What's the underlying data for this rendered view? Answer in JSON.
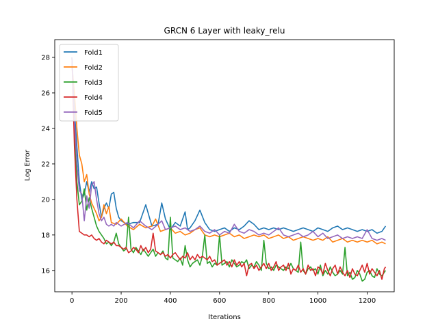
{
  "chart_data": {
    "type": "line",
    "title": "GRCN 6 Layer with leaky_relu",
    "xlabel": "Iterations",
    "ylabel": "Log Error",
    "xlim": [
      -70,
      1310
    ],
    "ylim": [
      14.8,
      29.0
    ],
    "xticks": [
      0,
      200,
      400,
      600,
      800,
      1000,
      1200
    ],
    "yticks": [
      16,
      18,
      20,
      22,
      24,
      26,
      28
    ],
    "grid": false,
    "legend_position": "upper-left",
    "series": [
      {
        "name": "Fold1",
        "color": "#1f77b4",
        "x": [
          0,
          10,
          20,
          30,
          40,
          50,
          60,
          70,
          80,
          90,
          100,
          110,
          120,
          130,
          140,
          150,
          160,
          170,
          180,
          190,
          200,
          225,
          250,
          275,
          300,
          325,
          350,
          365,
          380,
          400,
          420,
          440,
          460,
          470,
          480,
          500,
          520,
          540,
          560,
          580,
          600,
          620,
          640,
          660,
          680,
          700,
          720,
          740,
          760,
          780,
          800,
          820,
          840,
          860,
          880,
          900,
          920,
          940,
          960,
          980,
          1000,
          1020,
          1040,
          1060,
          1080,
          1100,
          1120,
          1140,
          1160,
          1180,
          1200,
          1220,
          1240,
          1260,
          1275
        ],
        "y": [
          28.0,
          25.0,
          23.0,
          21.0,
          20.0,
          20.3,
          21.0,
          20.4,
          21.0,
          20.6,
          20.7,
          19.8,
          19.0,
          19.5,
          19.8,
          19.5,
          20.3,
          20.4,
          19.5,
          19.0,
          18.8,
          18.6,
          18.7,
          18.7,
          19.7,
          18.5,
          18.6,
          19.8,
          18.9,
          18.3,
          18.7,
          18.5,
          19.3,
          18.3,
          18.4,
          18.8,
          19.4,
          18.7,
          18.3,
          18.2,
          18.3,
          18.4,
          18.2,
          18.4,
          18.3,
          18.5,
          18.8,
          18.6,
          18.3,
          18.4,
          18.3,
          18.4,
          18.3,
          18.4,
          18.3,
          18.2,
          18.3,
          18.4,
          18.3,
          18.2,
          18.4,
          18.3,
          18.2,
          18.4,
          18.5,
          18.3,
          18.4,
          18.3,
          18.2,
          18.3,
          18.2,
          18.3,
          18.1,
          18.2,
          18.5
        ]
      },
      {
        "name": "Fold2",
        "color": "#ff7f0e",
        "x": [
          0,
          10,
          20,
          30,
          40,
          50,
          60,
          70,
          80,
          90,
          100,
          110,
          120,
          130,
          140,
          150,
          160,
          180,
          200,
          225,
          250,
          275,
          300,
          325,
          340,
          360,
          380,
          400,
          420,
          440,
          460,
          480,
          500,
          520,
          540,
          560,
          580,
          600,
          620,
          640,
          660,
          680,
          700,
          720,
          740,
          760,
          780,
          800,
          820,
          840,
          860,
          880,
          900,
          920,
          940,
          960,
          980,
          1000,
          1020,
          1040,
          1060,
          1080,
          1100,
          1120,
          1140,
          1160,
          1180,
          1200,
          1220,
          1240,
          1260,
          1275
        ],
        "y": [
          27.5,
          26.0,
          24.0,
          22.5,
          22.0,
          21.0,
          21.4,
          20.3,
          19.8,
          19.5,
          19.2,
          18.8,
          19.0,
          19.7,
          19.2,
          19.6,
          18.7,
          18.6,
          18.9,
          18.5,
          18.3,
          18.6,
          18.4,
          18.5,
          18.9,
          18.2,
          18.3,
          18.4,
          18.1,
          18.2,
          18.0,
          18.1,
          18.3,
          18.4,
          18.0,
          17.9,
          18.0,
          17.9,
          18.0,
          18.1,
          17.9,
          18.0,
          17.8,
          17.9,
          18.0,
          17.9,
          18.0,
          17.8,
          17.9,
          18.0,
          17.8,
          17.9,
          17.7,
          17.8,
          17.9,
          17.8,
          17.7,
          17.8,
          17.7,
          17.9,
          17.6,
          17.7,
          17.8,
          17.6,
          17.7,
          17.6,
          17.7,
          17.6,
          17.7,
          17.5,
          17.6,
          17.5
        ]
      },
      {
        "name": "Fold3",
        "color": "#2ca02c",
        "x": [
          0,
          10,
          20,
          30,
          40,
          50,
          60,
          70,
          80,
          90,
          100,
          110,
          120,
          130,
          140,
          150,
          160,
          170,
          180,
          190,
          200,
          210,
          220,
          230,
          240,
          250,
          260,
          270,
          280,
          290,
          300,
          310,
          320,
          330,
          340,
          350,
          360,
          370,
          380,
          390,
          400,
          410,
          420,
          430,
          440,
          450,
          460,
          470,
          480,
          490,
          500,
          510,
          520,
          530,
          540,
          550,
          560,
          570,
          580,
          590,
          600,
          610,
          620,
          630,
          640,
          650,
          660,
          670,
          680,
          690,
          700,
          710,
          720,
          730,
          740,
          750,
          760,
          770,
          780,
          790,
          800,
          810,
          820,
          830,
          840,
          850,
          860,
          870,
          880,
          890,
          900,
          910,
          920,
          930,
          940,
          950,
          960,
          970,
          980,
          990,
          1000,
          1010,
          1020,
          1030,
          1040,
          1050,
          1060,
          1070,
          1080,
          1090,
          1100,
          1110,
          1120,
          1130,
          1140,
          1150,
          1160,
          1170,
          1180,
          1190,
          1200,
          1210,
          1220,
          1230,
          1240,
          1250,
          1260,
          1270,
          1275
        ],
        "y": [
          28.0,
          24.0,
          21.0,
          19.7,
          19.9,
          20.6,
          19.4,
          20.1,
          19.5,
          19.0,
          18.5,
          18.2,
          18.0,
          17.8,
          17.5,
          17.6,
          17.4,
          17.6,
          18.1,
          17.5,
          17.3,
          17.1,
          17.2,
          19.0,
          17.2,
          17.0,
          17.3,
          17.1,
          16.9,
          17.2,
          17.0,
          16.8,
          17.0,
          17.2,
          16.8,
          17.0,
          16.9,
          17.1,
          16.7,
          16.6,
          19.0,
          16.7,
          16.6,
          16.5,
          16.7,
          16.3,
          17.4,
          16.6,
          16.2,
          16.4,
          16.5,
          16.6,
          16.3,
          16.8,
          18.0,
          16.4,
          16.5,
          16.2,
          16.4,
          16.3,
          18.0,
          16.3,
          16.4,
          16.5,
          16.2,
          16.6,
          16.4,
          16.2,
          16.3,
          16.5,
          16.4,
          16.6,
          16.1,
          16.3,
          16.2,
          16.5,
          16.3,
          16.0,
          17.7,
          16.4,
          16.1,
          16.2,
          16.0,
          16.3,
          16.2,
          16.1,
          16.0,
          16.2,
          16.1,
          16.4,
          16.1,
          16.0,
          15.9,
          17.6,
          16.0,
          15.8,
          16.1,
          16.2,
          16.0,
          16.1,
          15.8,
          16.3,
          15.7,
          16.0,
          15.8,
          16.2,
          15.9,
          15.7,
          15.8,
          16.0,
          15.8,
          17.3,
          15.7,
          15.9,
          15.5,
          15.6,
          16.0,
          15.8,
          15.4,
          15.5,
          15.9,
          16.0,
          15.7,
          15.6,
          16.1,
          15.8,
          15.7,
          15.9,
          16.0
        ]
      },
      {
        "name": "Fold4",
        "color": "#d62728",
        "x": [
          0,
          10,
          20,
          30,
          40,
          50,
          60,
          70,
          80,
          90,
          100,
          110,
          120,
          130,
          140,
          150,
          160,
          170,
          180,
          190,
          200,
          210,
          220,
          230,
          240,
          250,
          260,
          270,
          280,
          290,
          300,
          310,
          320,
          330,
          340,
          350,
          360,
          370,
          380,
          390,
          400,
          410,
          420,
          430,
          440,
          450,
          460,
          470,
          480,
          490,
          500,
          510,
          520,
          530,
          540,
          550,
          560,
          570,
          580,
          590,
          600,
          610,
          620,
          630,
          640,
          650,
          660,
          670,
          680,
          690,
          700,
          710,
          720,
          730,
          740,
          750,
          760,
          770,
          780,
          790,
          800,
          810,
          820,
          830,
          840,
          850,
          860,
          870,
          880,
          890,
          900,
          910,
          920,
          930,
          940,
          950,
          960,
          970,
          980,
          990,
          1000,
          1010,
          1020,
          1030,
          1040,
          1050,
          1060,
          1070,
          1080,
          1090,
          1100,
          1110,
          1120,
          1130,
          1140,
          1150,
          1160,
          1170,
          1180,
          1190,
          1200,
          1210,
          1220,
          1230,
          1240,
          1250,
          1260,
          1270,
          1275
        ],
        "y": [
          28.0,
          23.0,
          20.0,
          18.2,
          18.1,
          18.0,
          18.0,
          17.9,
          18.0,
          17.8,
          17.7,
          17.8,
          17.6,
          17.5,
          17.7,
          17.6,
          17.5,
          17.6,
          17.4,
          17.4,
          17.3,
          17.2,
          17.3,
          17.0,
          17.1,
          17.3,
          17.2,
          17.0,
          17.4,
          17.1,
          17.3,
          17.0,
          17.2,
          18.1,
          17.1,
          17.0,
          16.9,
          17.0,
          16.8,
          16.9,
          16.7,
          16.9,
          17.0,
          16.8,
          16.6,
          16.8,
          16.7,
          17.0,
          16.6,
          16.8,
          16.6,
          16.9,
          16.7,
          16.8,
          16.7,
          16.6,
          16.8,
          16.5,
          16.6,
          16.3,
          16.4,
          16.5,
          16.6,
          16.3,
          16.5,
          16.2,
          16.6,
          16.3,
          16.5,
          16.2,
          16.4,
          15.7,
          16.3,
          16.4,
          16.1,
          16.3,
          16.0,
          16.2,
          16.4,
          16.1,
          16.4,
          16.0,
          16.2,
          16.5,
          16.0,
          16.2,
          16.3,
          16.0,
          16.4,
          15.8,
          16.1,
          16.0,
          16.3,
          15.9,
          16.1,
          15.8,
          16.3,
          16.0,
          16.1,
          15.7,
          16.2,
          16.1,
          15.8,
          16.4,
          16.0,
          15.7,
          16.1,
          16.3,
          15.8,
          16.2,
          15.9,
          15.7,
          16.0,
          15.6,
          16.1,
          15.8,
          15.7,
          16.0,
          16.3,
          15.9,
          16.4,
          15.8,
          16.1,
          15.9,
          15.7,
          16.0,
          15.5,
          16.1,
          16.2
        ]
      },
      {
        "name": "Fold5",
        "color": "#9467bd",
        "x": [
          0,
          10,
          20,
          30,
          40,
          50,
          60,
          70,
          80,
          90,
          100,
          110,
          120,
          130,
          140,
          150,
          160,
          170,
          180,
          190,
          200,
          225,
          250,
          275,
          300,
          325,
          350,
          365,
          380,
          400,
          420,
          440,
          460,
          480,
          500,
          520,
          540,
          560,
          580,
          600,
          620,
          640,
          660,
          680,
          700,
          720,
          740,
          760,
          780,
          800,
          820,
          840,
          860,
          880,
          900,
          920,
          940,
          960,
          980,
          1000,
          1020,
          1040,
          1060,
          1080,
          1100,
          1120,
          1140,
          1160,
          1180,
          1200,
          1220,
          1240,
          1260,
          1275
        ],
        "y": [
          28.0,
          24.5,
          22.0,
          20.5,
          20.3,
          18.8,
          20.2,
          19.5,
          20.8,
          21.0,
          20.0,
          19.2,
          18.8,
          19.0,
          18.6,
          18.5,
          18.6,
          18.5,
          18.7,
          18.6,
          18.5,
          18.7,
          18.4,
          18.8,
          18.5,
          18.3,
          18.6,
          18.8,
          18.3,
          18.4,
          18.5,
          18.3,
          18.4,
          18.2,
          18.3,
          18.5,
          18.2,
          18.1,
          18.3,
          18.0,
          18.2,
          18.1,
          18.6,
          18.2,
          18.1,
          18.3,
          18.2,
          18.0,
          18.1,
          18.0,
          18.2,
          18.4,
          18.0,
          17.9,
          18.0,
          18.1,
          17.9,
          18.0,
          18.2,
          17.9,
          18.1,
          17.8,
          17.9,
          18.0,
          17.8,
          17.9,
          17.8,
          17.9,
          17.8,
          18.3,
          17.8,
          17.7,
          17.8,
          17.7
        ]
      }
    ]
  }
}
